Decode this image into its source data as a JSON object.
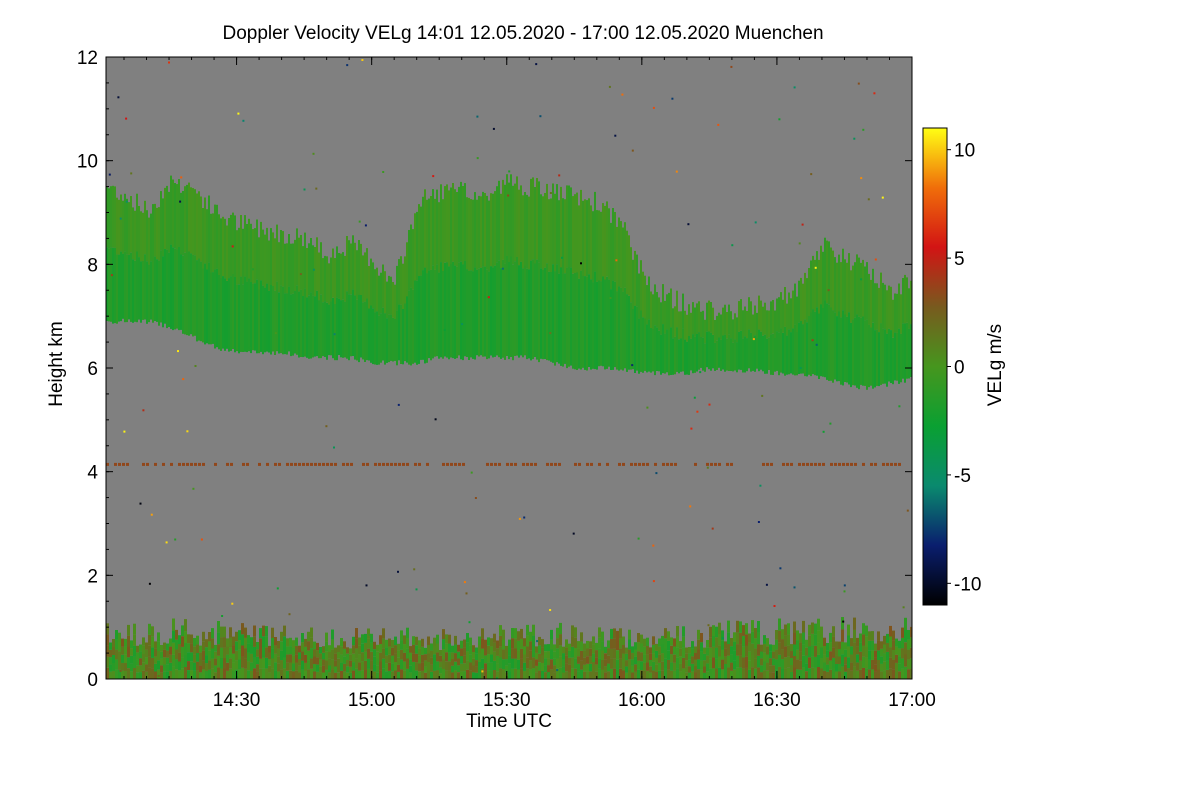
{
  "chart_data": {
    "type": "heatmap",
    "title": "Doppler Velocity VELg   14:01 12.05.2020 - 17:00 12.05.2020 Muenchen",
    "xlabel": "Time UTC",
    "ylabel": "Height km",
    "xlim": [
      "14:01",
      "17:00"
    ],
    "ylim": [
      0,
      12
    ],
    "x_ticks": [
      "14:30",
      "15:00",
      "15:30",
      "16:00",
      "16:30",
      "17:00"
    ],
    "y_ticks": [
      "0",
      "2",
      "4",
      "6",
      "8",
      "10",
      "12"
    ],
    "background_value_color": "#808080",
    "colorbar": {
      "label": "VELg m/s",
      "range": [
        -11,
        11
      ],
      "ticks": [
        "-10",
        "-5",
        "0",
        "5",
        "10"
      ],
      "colors": [
        "#000000",
        "#0a1e6e",
        "#0a8a6e",
        "#0aa032",
        "#46961e",
        "#785a1e",
        "#d21414",
        "#f06e0a",
        "#ffff14"
      ]
    },
    "features": [
      {
        "name": "cloud layer",
        "x_range": [
          "14:01",
          "17:00"
        ],
        "height_km_range": [
          5.6,
          9.7
        ],
        "velocity_m_s": -1.5
      },
      {
        "name": "boundary layer",
        "x_range": [
          "14:01",
          "17:00"
        ],
        "height_km_range": [
          0,
          1.4
        ],
        "velocity_m_s": [
          -2,
          3
        ]
      },
      {
        "name": "thin layer",
        "x_range": [
          "14:01",
          "16:57"
        ],
        "height_km": 4.15,
        "velocity_m_s": 3.5
      }
    ],
    "cloud_top_km": [
      [
        14.02,
        9.5
      ],
      [
        14.1,
        9.3
      ],
      [
        14.17,
        9.0
      ],
      [
        14.25,
        9.6
      ],
      [
        14.33,
        9.5
      ],
      [
        14.42,
        9.0
      ],
      [
        14.5,
        8.8
      ],
      [
        14.58,
        8.7
      ],
      [
        14.67,
        8.6
      ],
      [
        14.75,
        8.5
      ],
      [
        14.83,
        8.2
      ],
      [
        14.92,
        8.4
      ],
      [
        15.0,
        8.1
      ],
      [
        15.08,
        7.6
      ],
      [
        15.17,
        9.2
      ],
      [
        15.25,
        9.4
      ],
      [
        15.33,
        9.4
      ],
      [
        15.42,
        9.3
      ],
      [
        15.5,
        9.6
      ],
      [
        15.58,
        9.5
      ],
      [
        15.67,
        9.4
      ],
      [
        15.75,
        9.3
      ],
      [
        15.83,
        9.2
      ],
      [
        15.92,
        8.8
      ],
      [
        16.0,
        7.8
      ],
      [
        16.08,
        7.4
      ],
      [
        16.17,
        7.2
      ],
      [
        16.25,
        7.1
      ],
      [
        16.33,
        7.1
      ],
      [
        16.42,
        7.2
      ],
      [
        16.5,
        7.3
      ],
      [
        16.58,
        7.5
      ],
      [
        16.67,
        8.4
      ],
      [
        16.75,
        8.1
      ],
      [
        16.83,
        7.9
      ],
      [
        16.92,
        7.5
      ],
      [
        17.0,
        7.7
      ]
    ],
    "cloud_base_km": [
      [
        14.02,
        6.9
      ],
      [
        14.1,
        6.9
      ],
      [
        14.17,
        6.9
      ],
      [
        14.25,
        6.8
      ],
      [
        14.33,
        6.6
      ],
      [
        14.42,
        6.4
      ],
      [
        14.5,
        6.3
      ],
      [
        14.58,
        6.3
      ],
      [
        14.67,
        6.3
      ],
      [
        14.75,
        6.2
      ],
      [
        14.83,
        6.2
      ],
      [
        14.92,
        6.2
      ],
      [
        15.0,
        6.1
      ],
      [
        15.08,
        6.1
      ],
      [
        15.17,
        6.1
      ],
      [
        15.25,
        6.2
      ],
      [
        15.33,
        6.2
      ],
      [
        15.42,
        6.2
      ],
      [
        15.5,
        6.2
      ],
      [
        15.58,
        6.2
      ],
      [
        15.67,
        6.1
      ],
      [
        15.75,
        6.0
      ],
      [
        15.83,
        6.0
      ],
      [
        15.92,
        6.0
      ],
      [
        16.0,
        5.9
      ],
      [
        16.08,
        5.9
      ],
      [
        16.17,
        5.9
      ],
      [
        16.25,
        6.0
      ],
      [
        16.33,
        5.95
      ],
      [
        16.42,
        5.95
      ],
      [
        16.5,
        5.9
      ],
      [
        16.58,
        5.9
      ],
      [
        16.67,
        5.8
      ],
      [
        16.75,
        5.7
      ],
      [
        16.83,
        5.6
      ],
      [
        16.92,
        5.7
      ],
      [
        17.0,
        5.8
      ]
    ],
    "boundary_top_km": [
      [
        14.02,
        1.1
      ],
      [
        14.25,
        1.2
      ],
      [
        14.5,
        1.1
      ],
      [
        14.75,
        1.0
      ],
      [
        15.0,
        1.0
      ],
      [
        15.25,
        1.0
      ],
      [
        15.5,
        1.1
      ],
      [
        15.75,
        1.1
      ],
      [
        16.0,
        1.0
      ],
      [
        16.25,
        1.1
      ],
      [
        16.5,
        1.2
      ],
      [
        16.75,
        1.2
      ],
      [
        17.0,
        1.2
      ]
    ]
  }
}
